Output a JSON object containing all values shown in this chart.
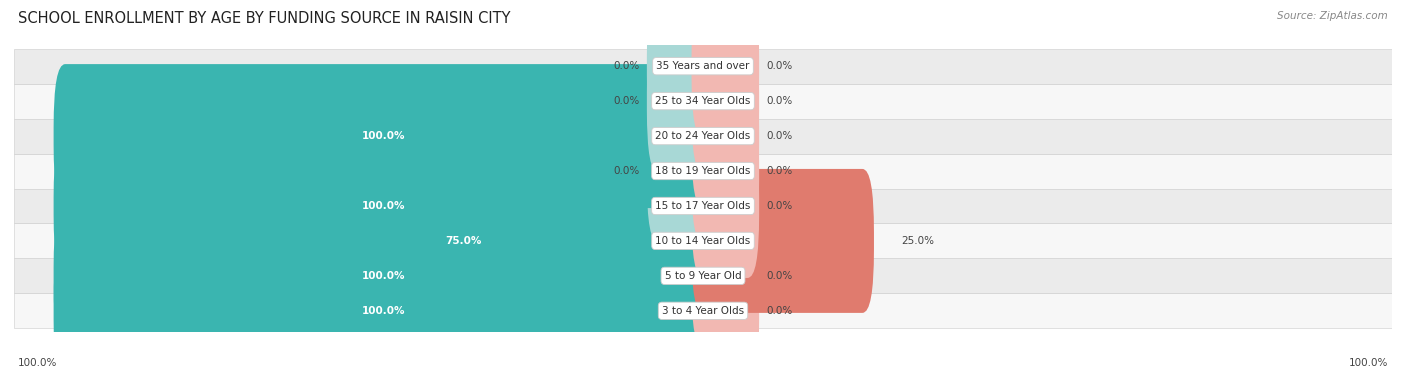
{
  "title": "SCHOOL ENROLLMENT BY AGE BY FUNDING SOURCE IN RAISIN CITY",
  "source": "Source: ZipAtlas.com",
  "categories": [
    "3 to 4 Year Olds",
    "5 to 9 Year Old",
    "10 to 14 Year Olds",
    "15 to 17 Year Olds",
    "18 to 19 Year Olds",
    "20 to 24 Year Olds",
    "25 to 34 Year Olds",
    "35 Years and over"
  ],
  "public_values": [
    100.0,
    100.0,
    75.0,
    100.0,
    0.0,
    100.0,
    0.0,
    0.0
  ],
  "private_values": [
    0.0,
    0.0,
    25.0,
    0.0,
    0.0,
    0.0,
    0.0,
    0.0
  ],
  "public_color": "#3ab5b0",
  "private_color": "#e07b6e",
  "public_color_zero": "#a8d8d6",
  "private_color_zero": "#f2b8b2",
  "row_bg_colors": [
    "#f7f7f7",
    "#ebebeb"
  ],
  "title_fontsize": 10.5,
  "label_fontsize": 7.5,
  "legend_fontsize": 8,
  "axis_label_left": "100.0%",
  "axis_label_right": "100.0%"
}
